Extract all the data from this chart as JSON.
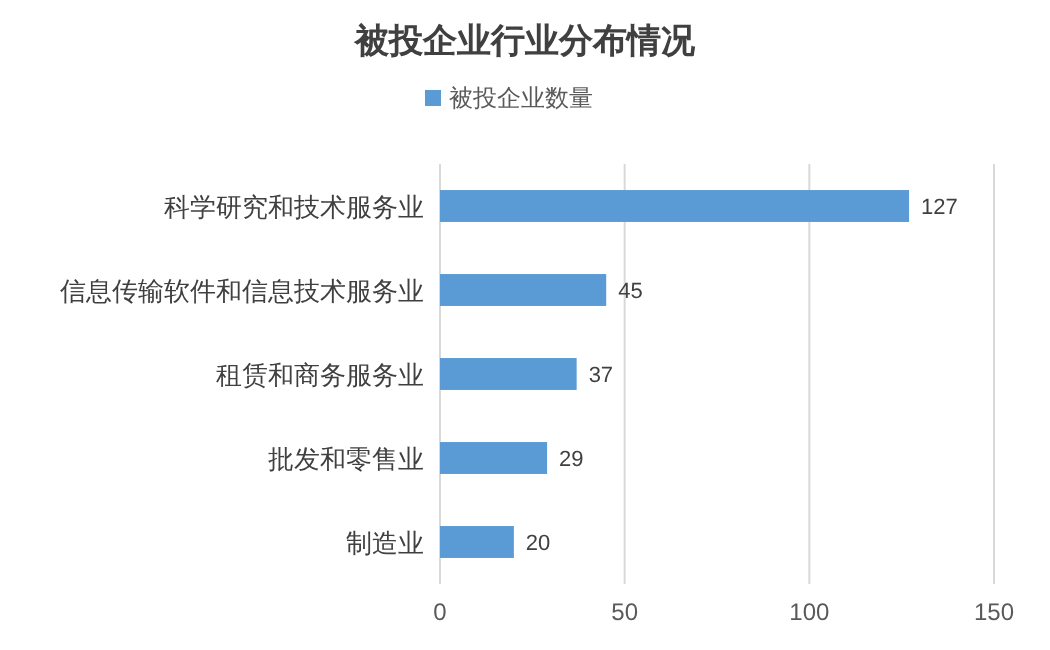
{
  "chart_data": {
    "type": "bar",
    "orientation": "horizontal",
    "title": "被投企业行业分布情况",
    "categories": [
      "科学研究和技术服务业",
      "信息传输软件和信息技术服务业",
      "租赁和商务服务业",
      "批发和零售业",
      "制造业"
    ],
    "series": [
      {
        "name": "被投企业数量",
        "color": "#5b9bd5",
        "values": [
          127,
          45,
          37,
          29,
          20
        ]
      }
    ],
    "xlim": [
      0,
      150
    ],
    "xticks": [
      0,
      50,
      100,
      150
    ],
    "grid": "x",
    "legend": "top",
    "data_labels": true
  }
}
